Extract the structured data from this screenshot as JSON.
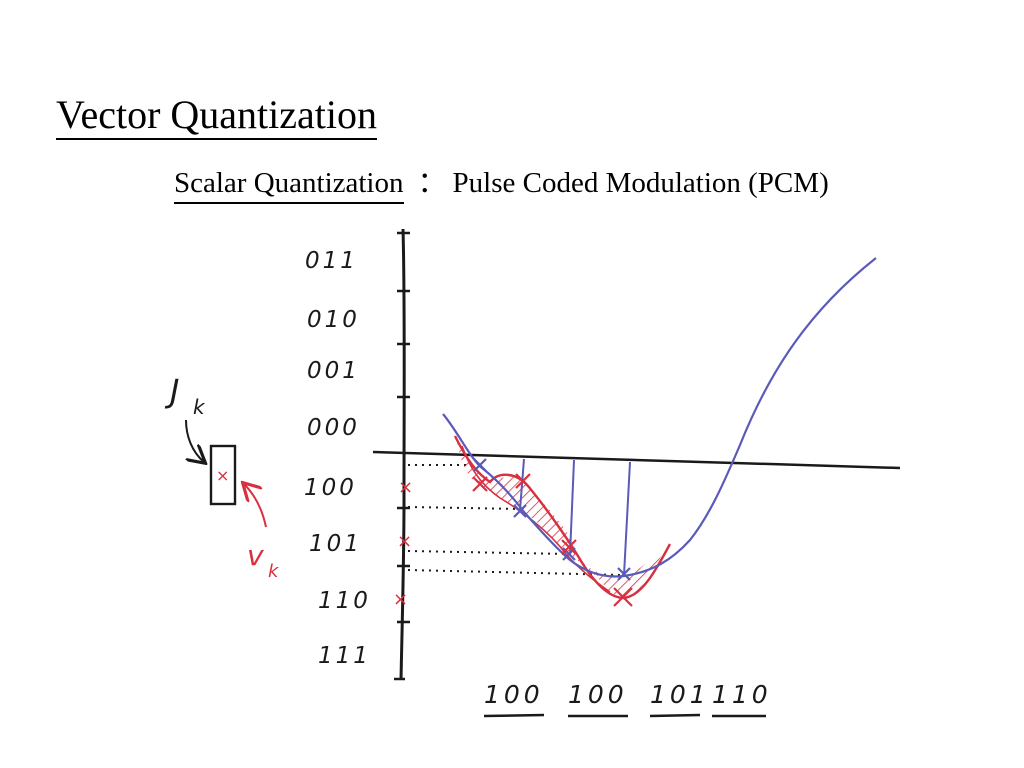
{
  "slide": {
    "title": "Vector Quantization",
    "subtitle_term": "Scalar Quantization",
    "subtitle_separator": "：",
    "subtitle_desc": "Pulse Coded Modulation (PCM)"
  },
  "diagram": {
    "level_codes": [
      "011",
      "010",
      "001",
      "000",
      "100",
      "101",
      "110",
      "111"
    ],
    "code_word_label": "J",
    "code_word_subscript": "k",
    "input_vector_label": "v",
    "input_vector_subscript": "k",
    "codebook_entry_mark": "×",
    "output_codes": [
      "100",
      "100",
      "101",
      "110"
    ],
    "colors": {
      "ink": "#1a1a1a",
      "signal": "#5a5ab8",
      "quantized": "#d83040",
      "background": "#ffffff"
    }
  }
}
